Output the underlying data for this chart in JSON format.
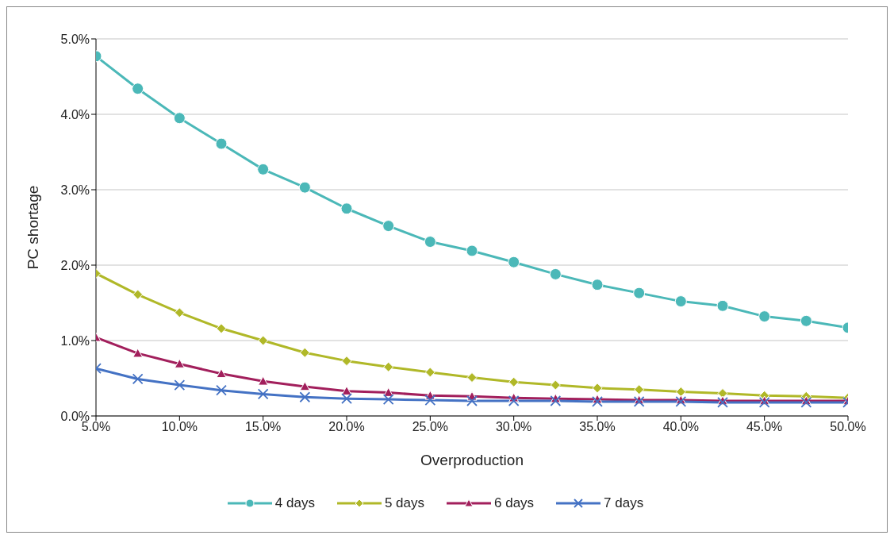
{
  "chart_data": {
    "type": "line",
    "xlabel": "Overproduction",
    "ylabel": "PC shortage",
    "x": [
      5,
      7.5,
      10,
      12.5,
      15,
      17.5,
      20,
      22.5,
      25,
      27.5,
      30,
      32.5,
      35,
      37.5,
      40,
      42.5,
      45,
      47.5,
      50
    ],
    "xlim": [
      5,
      50
    ],
    "xticks": [
      {
        "value": 5,
        "label": "5.0%"
      },
      {
        "value": 10,
        "label": "10.0%"
      },
      {
        "value": 15,
        "label": "15.0%"
      },
      {
        "value": 20,
        "label": "20.0%"
      },
      {
        "value": 25,
        "label": "25.0%"
      },
      {
        "value": 30,
        "label": "30.0%"
      },
      {
        "value": 35,
        "label": "35.0%"
      },
      {
        "value": 40,
        "label": "40.0%"
      },
      {
        "value": 45,
        "label": "45.0%"
      },
      {
        "value": 50,
        "label": "50.0%"
      }
    ],
    "ylim": [
      0,
      5
    ],
    "yticks": [
      {
        "value": 0,
        "label": "0.0%"
      },
      {
        "value": 1,
        "label": "1.0%"
      },
      {
        "value": 2,
        "label": "2.0%"
      },
      {
        "value": 3,
        "label": "3.0%"
      },
      {
        "value": 4,
        "label": "4.0%"
      },
      {
        "value": 5,
        "label": "5.0%"
      }
    ],
    "grid": "y",
    "legend": "bottom",
    "line_style": "solid",
    "series": [
      {
        "name": "4 days",
        "color": "#4bb8b8",
        "marker": "circle",
        "values": [
          4.77,
          4.34,
          3.95,
          3.61,
          3.27,
          3.03,
          2.75,
          2.52,
          2.31,
          2.19,
          2.04,
          1.88,
          1.74,
          1.63,
          1.52,
          1.46,
          1.32,
          1.26,
          1.17
        ]
      },
      {
        "name": "5 days",
        "color": "#b0b828",
        "marker": "diamond",
        "values": [
          1.89,
          1.61,
          1.37,
          1.16,
          1.0,
          0.84,
          0.73,
          0.65,
          0.58,
          0.51,
          0.45,
          0.41,
          0.37,
          0.35,
          0.32,
          0.3,
          0.27,
          0.26,
          0.24
        ]
      },
      {
        "name": "6 days",
        "color": "#a21f5c",
        "marker": "triangle",
        "values": [
          1.04,
          0.83,
          0.69,
          0.56,
          0.46,
          0.39,
          0.33,
          0.31,
          0.27,
          0.26,
          0.24,
          0.23,
          0.22,
          0.21,
          0.21,
          0.2,
          0.2,
          0.2,
          0.2
        ]
      },
      {
        "name": "7 days",
        "color": "#4472c4",
        "marker": "cross",
        "values": [
          0.63,
          0.49,
          0.41,
          0.34,
          0.29,
          0.25,
          0.23,
          0.22,
          0.21,
          0.2,
          0.2,
          0.2,
          0.19,
          0.19,
          0.19,
          0.18,
          0.18,
          0.18,
          0.18
        ]
      }
    ]
  }
}
